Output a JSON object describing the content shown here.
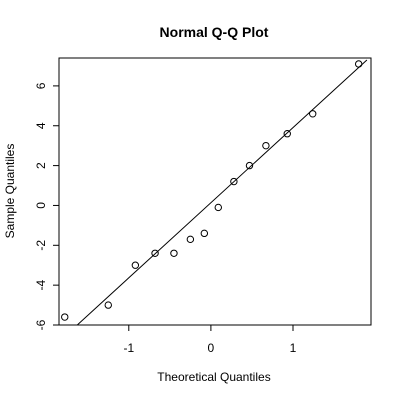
{
  "chart_data": {
    "type": "scatter",
    "title": "Normal Q-Q Plot",
    "xlabel": "Theoretical Quantiles",
    "ylabel": "Sample Quantiles",
    "xlim": [
      -1.85,
      1.95
    ],
    "ylim": [
      -6.0,
      7.4
    ],
    "xticks": [
      -1,
      0,
      1
    ],
    "xtick_labels": [
      "-1",
      "0",
      "1"
    ],
    "yticks": [
      -6,
      -4,
      -2,
      0,
      2,
      4,
      6
    ],
    "ytick_labels": [
      "-6",
      "-4",
      "-2",
      "0",
      "2",
      "4",
      "6"
    ],
    "grid": false,
    "legend": false,
    "series": [
      {
        "x": [
          -1.78,
          -1.25,
          -0.92,
          -0.68,
          -0.45,
          -0.25,
          -0.08,
          0.09,
          0.28,
          0.47,
          0.67,
          0.93,
          1.24,
          1.8
        ],
        "y": [
          -5.6,
          -5.0,
          -3.0,
          -2.4,
          -2.4,
          -1.7,
          -1.4,
          -0.1,
          1.2,
          2.0,
          3.0,
          3.6,
          4.6,
          7.1
        ],
        "marker": "open-circle"
      }
    ],
    "reference_line": {
      "x": [
        -1.8,
        1.9
      ],
      "y": [
        -6.65,
        7.3
      ]
    }
  }
}
